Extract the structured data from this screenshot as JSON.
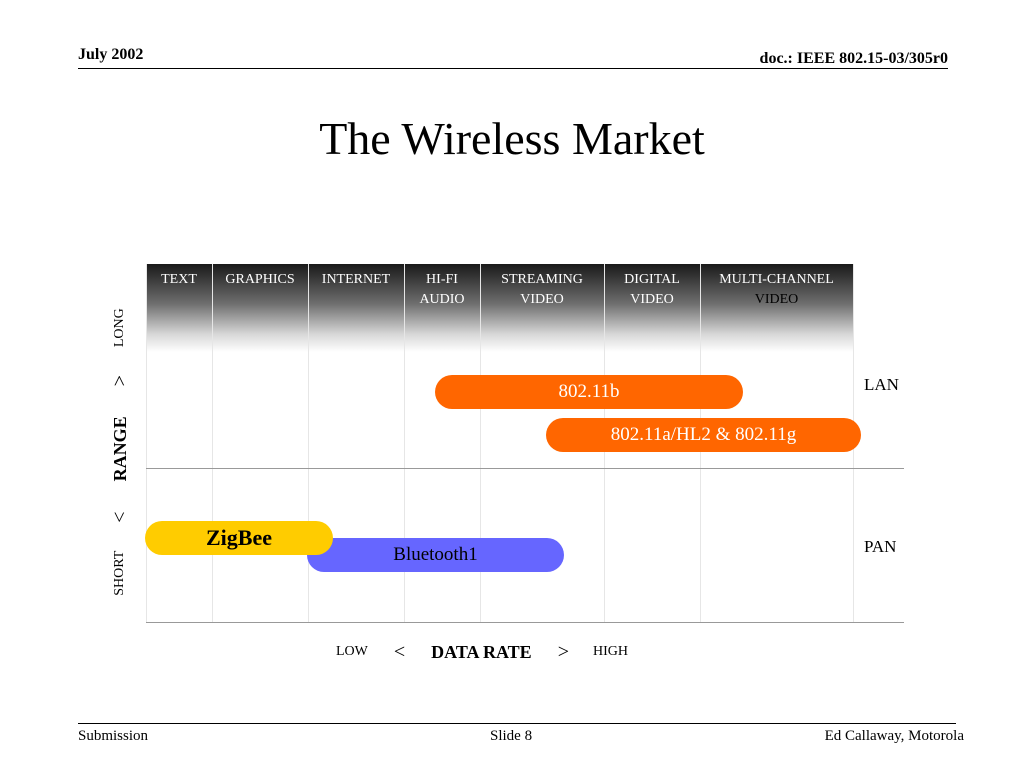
{
  "header": {
    "date": "July 2002",
    "doc": "doc.: IEEE 802.15-03/305r0"
  },
  "title": "The Wireless Market",
  "diagram": {
    "columns": [
      {
        "line1": "TEXT",
        "line2": ""
      },
      {
        "line1": "GRAPHICS",
        "line2": ""
      },
      {
        "line1": "INTERNET",
        "line2": ""
      },
      {
        "line1": "HI-FI",
        "line2": "AUDIO"
      },
      {
        "line1": "STREAMING",
        "line2": "VIDEO"
      },
      {
        "line1": "DIGITAL",
        "line2": "VIDEO"
      },
      {
        "line1": "MULTI-CHANNEL",
        "line2": "VIDEO"
      }
    ],
    "bars": {
      "b80211b": "802.11b",
      "b80211a": "802.11a/HL2 & 802.11g",
      "bluetooth": "Bluetooth1",
      "zigbee": "ZigBee"
    },
    "zones": {
      "lan": "LAN",
      "pan": "PAN"
    },
    "y_axis": {
      "short": "SHORT",
      "lt": "<",
      "label": "RANGE",
      "gt": ">",
      "long": "LONG"
    },
    "x_axis": {
      "low": "LOW",
      "lt": "<",
      "label": "DATA RATE",
      "gt": ">",
      "high": "HIGH"
    },
    "colors": {
      "wifi": "#ff6600",
      "bluetooth": "#6666ff",
      "zigbee": "#ffcc00"
    }
  },
  "footer": {
    "left": "Submission",
    "center": "Slide 8",
    "right": "Ed Callaway, Motorola"
  }
}
